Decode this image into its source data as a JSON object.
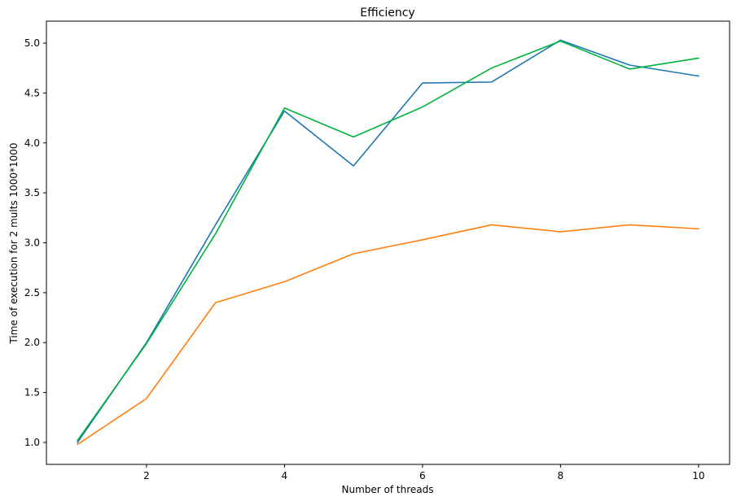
{
  "chart_data": {
    "type": "line",
    "title": "Efficiency",
    "xlabel": "Number of threads",
    "ylabel": "Time of execution for 2 mults 1000*1000",
    "x": [
      1,
      2,
      3,
      4,
      5,
      6,
      7,
      8,
      9,
      10
    ],
    "xlim": [
      0.55,
      10.45
    ],
    "ylim": [
      0.78,
      5.22
    ],
    "xticks": [
      2,
      4,
      6,
      8,
      10
    ],
    "xtick_labels": [
      "2",
      "4",
      "6",
      "8",
      "10"
    ],
    "yticks": [
      1.0,
      1.5,
      2.0,
      2.5,
      3.0,
      3.5,
      4.0,
      4.5,
      5.0
    ],
    "ytick_labels": [
      "1.0",
      "1.5",
      "2.0",
      "2.5",
      "3.0",
      "3.5",
      "4.0",
      "4.5",
      "5.0"
    ],
    "grid": false,
    "series": [
      {
        "name": "series-1",
        "color": "#1f77b4",
        "values": [
          1.0,
          2.0,
          3.18,
          4.32,
          3.77,
          4.6,
          4.61,
          5.03,
          4.78,
          4.67
        ]
      },
      {
        "name": "series-2",
        "color": "#ff7f0e",
        "values": [
          0.98,
          1.44,
          2.4,
          2.61,
          2.89,
          3.03,
          3.18,
          3.11,
          3.18,
          3.14
        ]
      },
      {
        "name": "series-3",
        "color": "#00b33c",
        "values": [
          1.02,
          1.99,
          3.09,
          4.35,
          4.06,
          4.36,
          4.75,
          5.02,
          4.74,
          4.85
        ]
      }
    ]
  }
}
